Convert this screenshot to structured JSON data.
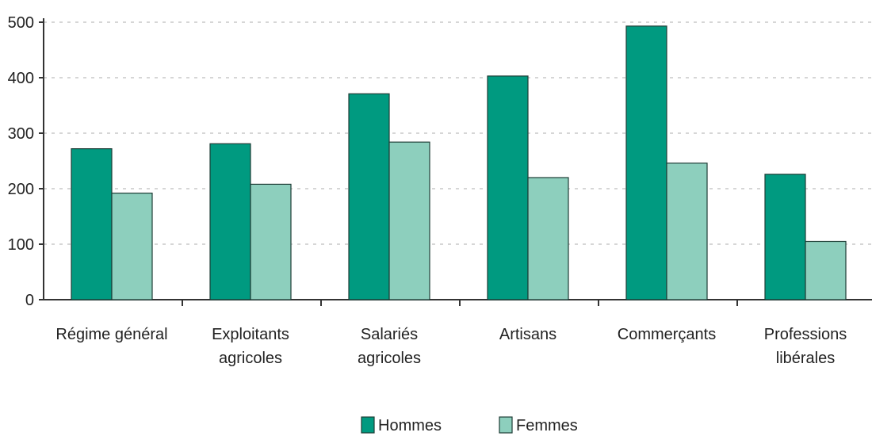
{
  "chart_data": {
    "type": "bar",
    "categories": [
      [
        "Régime général"
      ],
      [
        "Exploitants",
        "agricoles"
      ],
      [
        "Salariés",
        "agricoles"
      ],
      [
        "Artisans"
      ],
      [
        "Commerçants"
      ],
      [
        "Professions",
        "libérales"
      ]
    ],
    "series": [
      {
        "name": "Hommes",
        "values": [
          272,
          281,
          371,
          403,
          493,
          226
        ],
        "color": "#009a80"
      },
      {
        "name": "Femmes",
        "values": [
          192,
          208,
          284,
          220,
          246,
          105
        ],
        "color": "#8dcfbd"
      }
    ],
    "ylim": [
      0,
      500
    ],
    "yticks": [
      0,
      100,
      200,
      300,
      400,
      500
    ],
    "grid": true,
    "legend_position": "bottom-center"
  }
}
